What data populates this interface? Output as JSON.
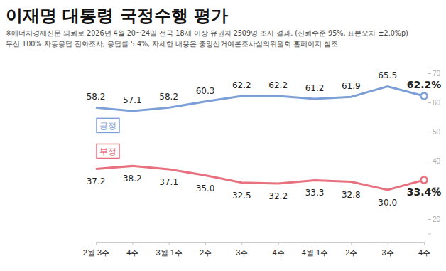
{
  "chart_data": {
    "type": "line",
    "title": "이재명 대통령 국정수행 평가",
    "subtitle": [
      "※에너지경제신문 의뢰로 2026년 4월 20~24일 전국 18세 이상 유권자 2509명 조사 결과. (신뢰수준 95%, 표본오차 ±2.0%p)",
      "무선 100% 자동응답 전화조사, 응답률 5.4%, 자세한 내용은 중앙선거여론조사심의위원회 홈페이지 참조"
    ],
    "categories": [
      "2월 3주",
      "4주",
      "3월 1주",
      "2주",
      "3주",
      "4주",
      "4월 1주",
      "2주",
      "3주",
      "4주"
    ],
    "series": [
      {
        "name": "긍정",
        "color": "#7d9fd8",
        "values": [
          58.2,
          57.1,
          58.2,
          60.3,
          62.2,
          62.2,
          61.2,
          61.9,
          65.5,
          62.2
        ],
        "value_labels": [
          "58.2",
          "57.1",
          "58.2",
          "60.3",
          "62.2",
          "62.2",
          "61.2",
          "61.9",
          "65.5",
          "62.2%"
        ]
      },
      {
        "name": "부정",
        "color": "#e8717f",
        "values": [
          37.2,
          38.2,
          37.1,
          35.0,
          32.5,
          32.2,
          33.3,
          32.8,
          30.0,
          33.4
        ],
        "value_labels": [
          "37.2",
          "38.2",
          "37.1",
          "35.0",
          "32.5",
          "32.2",
          "33.3",
          "32.8",
          "30.0",
          "33.4%"
        ]
      }
    ],
    "ylim": [
      15,
      72
    ],
    "yticks": [
      20,
      30,
      40,
      50,
      60,
      70
    ],
    "grid": false,
    "data_labels": true
  }
}
